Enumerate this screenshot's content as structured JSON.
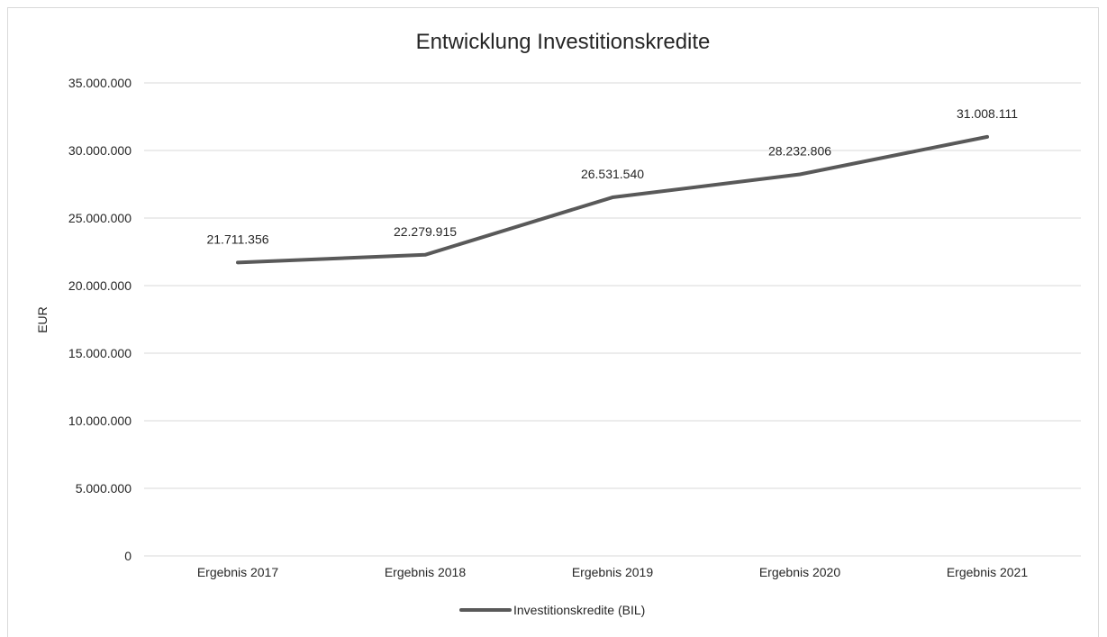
{
  "chart_data": {
    "type": "line",
    "title": "Entwicklung Investitionskredite",
    "xlabel": "",
    "ylabel": "EUR",
    "categories": [
      "Ergebnis 2017",
      "Ergebnis 2018",
      "Ergebnis 2019",
      "Ergebnis 2020",
      "Ergebnis 2021"
    ],
    "series": [
      {
        "name": "Investitionskredite (BIL)",
        "values": [
          21711356,
          22279915,
          26531540,
          28232806,
          31008111
        ],
        "value_labels": [
          "21.711.356",
          "22.279.915",
          "26.531.540",
          "28.232.806",
          "31.008.111"
        ],
        "color": "#595959"
      }
    ],
    "ylim": [
      0,
      35000000
    ],
    "yticks": [
      0,
      5000000,
      10000000,
      15000000,
      20000000,
      25000000,
      30000000,
      35000000
    ],
    "ytick_labels": [
      "0",
      "5.000.000",
      "10.000.000",
      "15.000.000",
      "20.000.000",
      "25.000.000",
      "30.000.000",
      "35.000.000"
    ],
    "grid": true,
    "gridline_color": "#d9d9d9",
    "legend_position": "bottom"
  }
}
